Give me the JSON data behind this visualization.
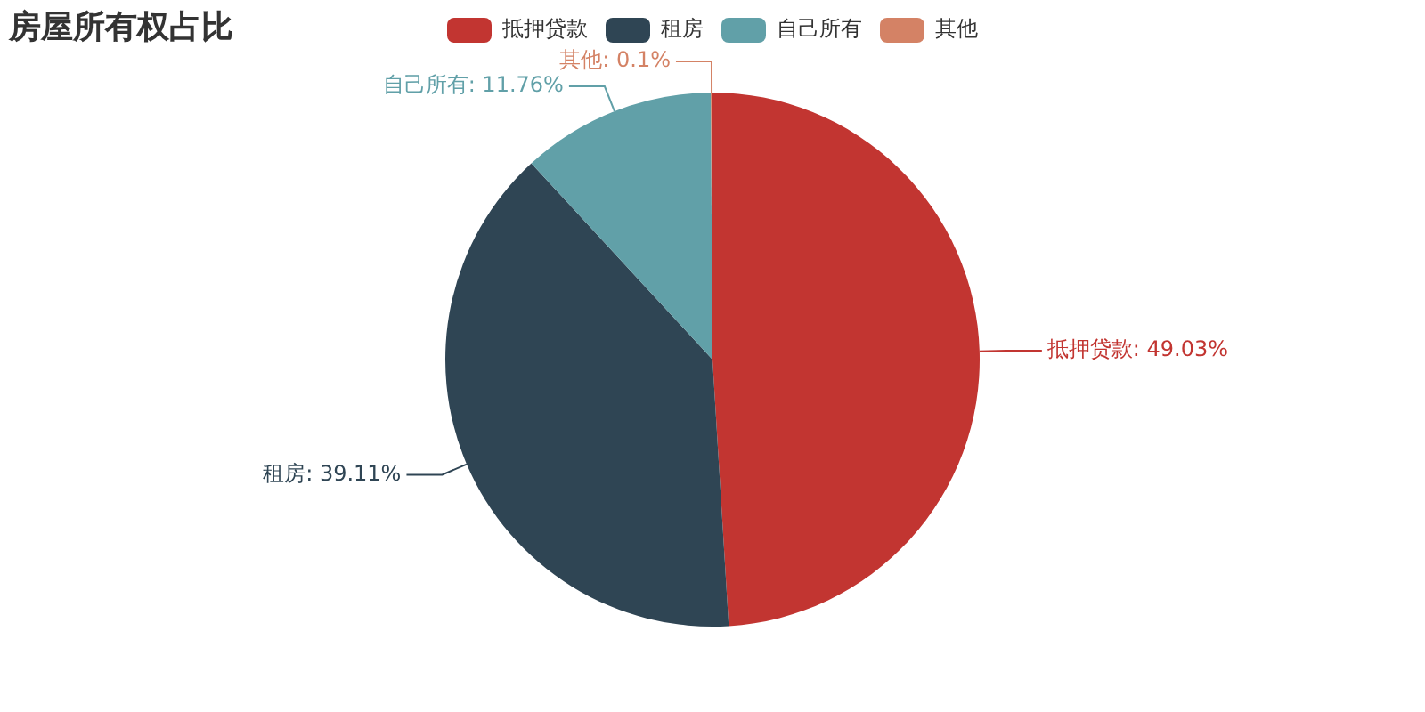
{
  "chart_data": {
    "type": "pie",
    "title": "房屋所有权占比",
    "categories": [
      "抵押贷款",
      "租房",
      "自己所有",
      "其他"
    ],
    "values": [
      49.03,
      39.11,
      11.76,
      0.1
    ],
    "value_labels": [
      "抵押贷款: 49.03%",
      "租房: 39.11%",
      "自己所有: 11.76%",
      "其他: 0.1%"
    ],
    "colors": [
      "#c23531",
      "#2f4554",
      "#61a0a8",
      "#d48265"
    ],
    "legend": "top"
  }
}
